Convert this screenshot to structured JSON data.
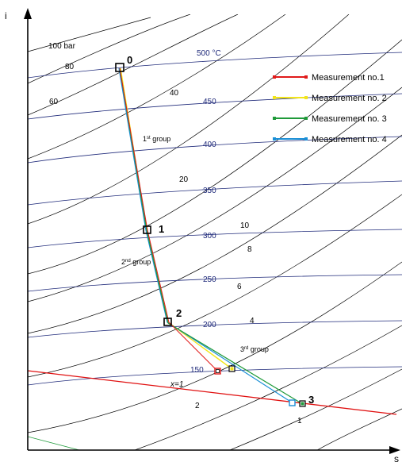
{
  "axes": {
    "y_label": "i",
    "x_label": "s"
  },
  "isobars": [
    {
      "label": "100 bar",
      "pressure": 100
    },
    {
      "label": "80",
      "pressure": 80
    },
    {
      "label": "60",
      "pressure": 60
    },
    {
      "label": "40",
      "pressure": 40
    },
    {
      "label": "20",
      "pressure": 20
    },
    {
      "label": "10",
      "pressure": 10
    },
    {
      "label": "8",
      "pressure": 8
    },
    {
      "label": "6",
      "pressure": 6
    },
    {
      "label": "4",
      "pressure": 4
    },
    {
      "label": "2",
      "pressure": 2
    },
    {
      "label": "1",
      "pressure": 1
    }
  ],
  "isotherms": [
    {
      "label": "500 °C",
      "temperature": 500
    },
    {
      "label": "450",
      "temperature": 450
    },
    {
      "label": "400",
      "temperature": 400
    },
    {
      "label": "350",
      "temperature": 350
    },
    {
      "label": "300",
      "temperature": 300
    },
    {
      "label": "250",
      "temperature": 250
    },
    {
      "label": "200",
      "temperature": 200
    },
    {
      "label": "150",
      "temperature": 150
    }
  ],
  "saturation": {
    "label": "x=1",
    "color": "#e01010"
  },
  "points": [
    {
      "label": "0"
    },
    {
      "label": "1"
    },
    {
      "label": "2"
    },
    {
      "label": "3"
    }
  ],
  "groups": [
    {
      "base": "1",
      "sup": "st",
      "text": " group"
    },
    {
      "base": "2",
      "sup": "nd",
      "text": " group"
    },
    {
      "base": "3",
      "sup": "rd",
      "text": " group"
    }
  ],
  "legend": [
    {
      "label": "Measurement no.1",
      "color": "#e01a1a"
    },
    {
      "label": "Measurement no. 2",
      "color": "#f2e51a"
    },
    {
      "label": "Measurement no. 3",
      "color": "#1f9a3a"
    },
    {
      "label": "Measurement no. 4",
      "color": "#1a8fd6"
    }
  ]
}
